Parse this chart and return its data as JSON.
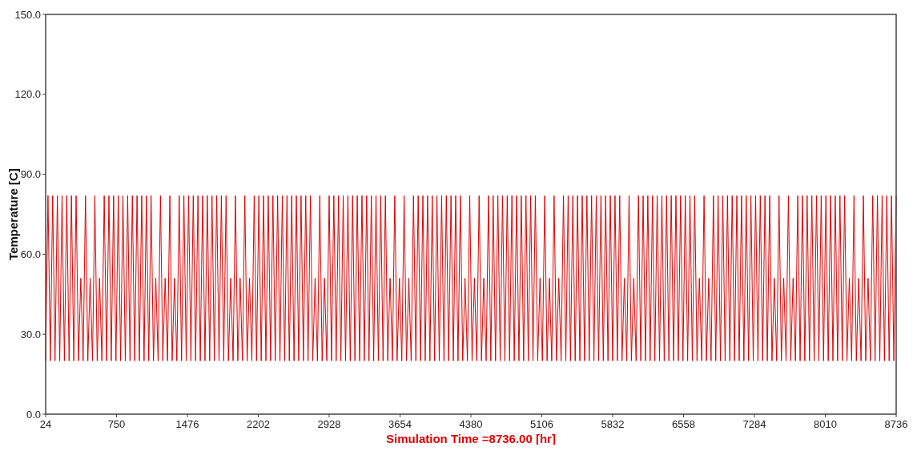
{
  "chart_data": {
    "type": "line",
    "xlabel": "Simulation Time =8736.00 [hr]",
    "ylabel": "Temperature [C]",
    "xlim": [
      24,
      8736
    ],
    "xticks": [
      24,
      750,
      1476,
      2202,
      2928,
      3654,
      4380,
      5106,
      5832,
      6558,
      7284,
      8010,
      8736
    ],
    "ylim": [
      0,
      150
    ],
    "yticks": [
      {
        "value": 0,
        "label": "0.0"
      },
      {
        "value": 30,
        "label": "30.0"
      },
      {
        "value": 60,
        "label": "60.0"
      },
      {
        "value": 90,
        "label": "90.0"
      },
      {
        "value": 120,
        "label": "120.0"
      },
      {
        "value": 150,
        "label": "150.0"
      }
    ],
    "grid": false,
    "marker": "none",
    "line_style": "solid",
    "x": [
      24,
      48,
      72,
      96,
      120,
      144,
      168,
      192,
      216,
      240,
      264,
      288,
      312,
      336,
      360,
      384,
      408,
      432,
      456,
      480,
      504,
      528,
      552,
      576,
      600,
      624,
      648,
      672,
      696,
      720,
      744,
      768,
      792,
      816,
      840,
      864,
      888,
      912,
      936,
      960,
      984,
      1008,
      1032,
      1056,
      1080,
      1104,
      1128,
      1152,
      1176,
      1200,
      1224,
      1248,
      1272,
      1296,
      1320,
      1344,
      1368,
      1392,
      1416,
      1440,
      1464,
      1488,
      1512,
      1536,
      1560,
      1584,
      1608,
      1632,
      1656,
      1680,
      1704,
      1728,
      1752,
      1776,
      1800,
      1824,
      1848,
      1872,
      1896,
      1920,
      1944,
      1968,
      1992,
      2016,
      2040,
      2064,
      2088,
      2112,
      2136,
      2160,
      2184,
      2208,
      2232,
      2256,
      2280,
      2304,
      2328,
      2352,
      2376,
      2400,
      2424,
      2448,
      2472,
      2496,
      2520,
      2544,
      2568,
      2592,
      2616,
      2640,
      2664,
      2688,
      2712,
      2736,
      2760,
      2784,
      2808,
      2832,
      2856,
      2880,
      2904,
      2928,
      2952,
      2976,
      3000,
      3024,
      3048,
      3072,
      3096,
      3120,
      3144,
      3168,
      3192,
      3216,
      3240,
      3264,
      3288,
      3312,
      3336,
      3360,
      3384,
      3408,
      3432,
      3456,
      3480,
      3504,
      3528,
      3552,
      3576,
      3600,
      3624,
      3648,
      3672,
      3696,
      3720,
      3744,
      3768,
      3792,
      3816,
      3840,
      3864,
      3888,
      3912,
      3936,
      3960,
      3984,
      4008,
      4032,
      4056,
      4080,
      4104,
      4128,
      4152,
      4176,
      4200,
      4224,
      4248,
      4272,
      4296,
      4320,
      4344,
      4368,
      4392,
      4416,
      4440,
      4464,
      4488,
      4512,
      4536,
      4560,
      4584,
      4608,
      4632,
      4656,
      4680,
      4704,
      4728,
      4752,
      4776,
      4800,
      4824,
      4848,
      4872,
      4896,
      4920,
      4944,
      4968,
      4992,
      5016,
      5040,
      5064,
      5088,
      5112,
      5136,
      5160,
      5184,
      5208,
      5232,
      5256,
      5280,
      5304,
      5328,
      5352,
      5376,
      5400,
      5424,
      5448,
      5472,
      5496,
      5520,
      5544,
      5568,
      5592,
      5616,
      5640,
      5664,
      5688,
      5712,
      5736,
      5760,
      5784,
      5808,
      5832,
      5856,
      5880,
      5904,
      5928,
      5952,
      5976,
      6000,
      6024,
      6048,
      6072,
      6096,
      6120,
      6144,
      6168,
      6192,
      6216,
      6240,
      6264,
      6288,
      6312,
      6336,
      6360,
      6384,
      6408,
      6432,
      6456,
      6480,
      6504,
      6528,
      6552,
      6576,
      6600,
      6624,
      6648,
      6672,
      6696,
      6720,
      6744,
      6768,
      6792,
      6816,
      6840,
      6864,
      6888,
      6912,
      6936,
      6960,
      6984,
      7008,
      7032,
      7056,
      7080,
      7104,
      7128,
      7152,
      7176,
      7200,
      7224,
      7248,
      7272,
      7296,
      7320,
      7344,
      7368,
      7392,
      7416,
      7440,
      7464,
      7488,
      7512,
      7536,
      7560,
      7584,
      7608,
      7632,
      7656,
      7680,
      7704,
      7728,
      7752,
      7776,
      7800,
      7824,
      7848,
      7872,
      7896,
      7920,
      7944,
      7968,
      7992,
      8016,
      8040,
      8064,
      8088,
      8112,
      8136,
      8160,
      8184,
      8208,
      8232,
      8256,
      8280,
      8304,
      8328,
      8352,
      8376,
      8400,
      8424,
      8448,
      8472,
      8496,
      8520,
      8544,
      8568,
      8592,
      8616,
      8640,
      8664,
      8688,
      8712,
      8736
    ],
    "series": [
      {
        "color": "#e00000",
        "values": [
          20,
          82,
          20,
          82,
          20,
          82,
          20,
          82,
          20,
          82,
          20,
          82,
          20,
          82,
          20,
          51,
          20,
          82,
          20,
          51,
          20,
          82,
          20,
          51,
          20,
          82,
          20,
          82,
          20,
          82,
          20,
          82,
          20,
          82,
          20,
          82,
          20,
          82,
          20,
          82,
          20,
          82,
          20,
          82,
          20,
          82,
          20,
          51,
          20,
          82,
          20,
          51,
          20,
          82,
          20,
          51,
          20,
          82,
          20,
          82,
          20,
          82,
          20,
          82,
          20,
          82,
          20,
          82,
          20,
          82,
          20,
          82,
          20,
          82,
          20,
          82,
          20,
          82,
          20,
          51,
          20,
          82,
          20,
          51,
          20,
          82,
          20,
          51,
          20,
          82,
          20,
          82,
          20,
          82,
          20,
          82,
          20,
          82,
          20,
          82,
          20,
          82,
          20,
          82,
          20,
          82,
          20,
          82,
          20,
          82,
          20,
          82,
          20,
          82,
          20,
          51,
          20,
          82,
          20,
          51,
          20,
          82,
          20,
          82,
          20,
          82,
          20,
          82,
          20,
          82,
          20,
          82,
          20,
          82,
          20,
          82,
          20,
          82,
          20,
          82,
          20,
          82,
          20,
          82,
          20,
          82,
          20,
          51,
          20,
          82,
          20,
          51,
          20,
          82,
          20,
          51,
          20,
          82,
          20,
          82,
          20,
          82,
          20,
          82,
          20,
          82,
          20,
          82,
          20,
          82,
          20,
          82,
          20,
          82,
          20,
          82,
          20,
          82,
          20,
          51,
          20,
          82,
          20,
          51,
          20,
          82,
          20,
          51,
          20,
          82,
          20,
          82,
          20,
          82,
          20,
          82,
          20,
          82,
          20,
          82,
          20,
          82,
          20,
          82,
          20,
          82,
          20,
          82,
          20,
          82,
          20,
          51,
          20,
          82,
          20,
          51,
          20,
          82,
          20,
          51,
          20,
          82,
          20,
          82,
          20,
          82,
          20,
          82,
          20,
          82,
          20,
          82,
          20,
          82,
          20,
          82,
          20,
          82,
          20,
          82,
          20,
          82,
          20,
          82,
          20,
          82,
          20,
          51,
          20,
          82,
          20,
          51,
          20,
          82,
          20,
          82,
          20,
          82,
          20,
          82,
          20,
          82,
          20,
          82,
          20,
          82,
          20,
          82,
          20,
          82,
          20,
          82,
          20,
          82,
          20,
          82,
          20,
          82,
          20,
          51,
          20,
          82,
          20,
          51,
          20,
          82,
          20,
          82,
          20,
          82,
          20,
          82,
          20,
          82,
          20,
          82,
          20,
          82,
          20,
          82,
          20,
          82,
          20,
          82,
          20,
          82,
          20,
          82,
          20,
          82,
          20,
          51,
          20,
          82,
          20,
          51,
          20,
          82,
          20,
          51,
          20,
          82,
          20,
          82,
          20,
          82,
          20,
          82,
          20,
          82,
          20,
          82,
          20,
          82,
          20,
          82,
          20,
          82,
          20,
          82,
          20,
          82,
          20,
          51,
          20,
          82,
          20,
          51,
          20,
          82,
          20,
          51,
          20,
          82,
          20,
          82,
          20,
          82,
          20,
          82,
          20,
          82,
          20,
          82
        ]
      }
    ]
  }
}
